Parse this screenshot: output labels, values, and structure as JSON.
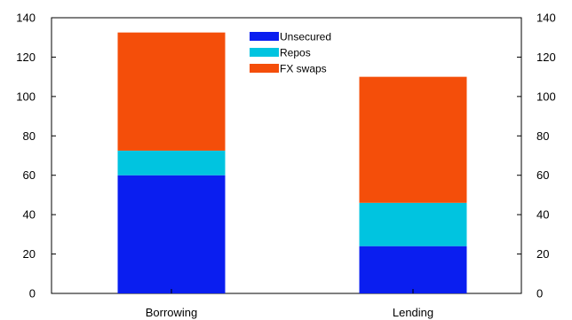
{
  "chart_data": {
    "type": "bar",
    "stacked": true,
    "categories": [
      "Borrowing",
      "Lending"
    ],
    "series": [
      {
        "name": "Unsecured",
        "color": "#0a1ef0",
        "values": [
          60,
          24
        ]
      },
      {
        "name": "Repos",
        "color": "#00c4e0",
        "values": [
          12.5,
          22
        ]
      },
      {
        "name": "FX swaps",
        "color": "#f44e0a",
        "values": [
          60,
          64
        ]
      }
    ],
    "ylim": [
      0,
      140
    ],
    "y_ticks": [
      0,
      20,
      40,
      60,
      80,
      100,
      120,
      140
    ],
    "y_ticks_right": [
      0,
      20,
      40,
      60,
      80,
      100,
      120,
      140
    ],
    "legend_position": "top-center",
    "grid": false
  }
}
